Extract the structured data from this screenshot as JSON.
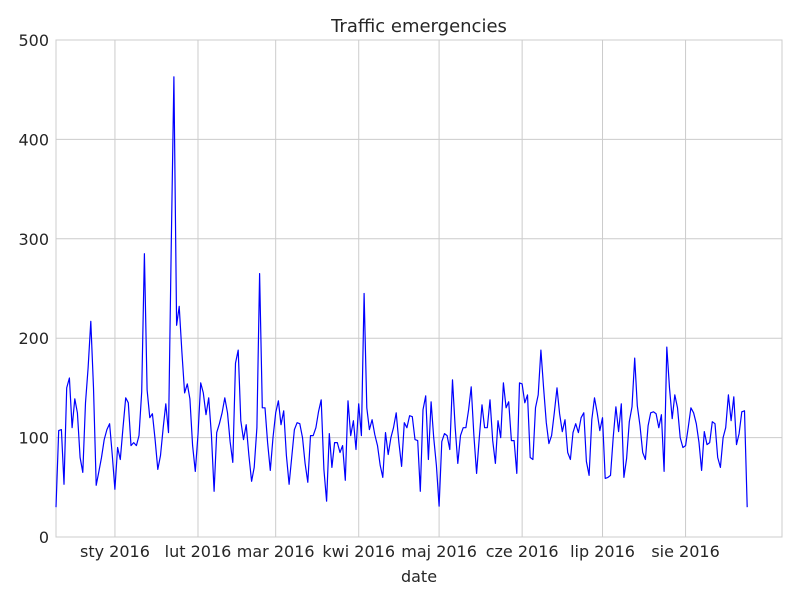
{
  "chart_data": {
    "type": "line",
    "title": "Traffic emergencies",
    "xlabel": "date",
    "ylabel": "",
    "ylim": [
      0,
      500
    ],
    "yticks": [
      0,
      100,
      200,
      300,
      400,
      500
    ],
    "xlim": [
      "2015-12-10",
      "2016-09-06"
    ],
    "xticks": [
      {
        "date": "2016-01-01",
        "label": "sty 2016"
      },
      {
        "date": "2016-02-01",
        "label": "lut 2016"
      },
      {
        "date": "2016-03-01",
        "label": "mar 2016"
      },
      {
        "date": "2016-04-01",
        "label": "kwi 2016"
      },
      {
        "date": "2016-05-01",
        "label": "maj 2016"
      },
      {
        "date": "2016-06-01",
        "label": "cze 2016"
      },
      {
        "date": "2016-07-01",
        "label": "lip 2016"
      },
      {
        "date": "2016-08-01",
        "label": "sie 2016"
      }
    ],
    "grid": true,
    "color": "#0000ff",
    "series": [
      {
        "start_date": "2015-12-10",
        "values": [
          30,
          107,
          108,
          53,
          150,
          160,
          110,
          139,
          125,
          80,
          65,
          135,
          170,
          217,
          150,
          52,
          66,
          80,
          98,
          108,
          114,
          82,
          48,
          90,
          78,
          110,
          140,
          135,
          92,
          95,
          92,
          102,
          146,
          285,
          148,
          120,
          124,
          98,
          68,
          82,
          110,
          134,
          105,
          290,
          463,
          213,
          232,
          186,
          145,
          154,
          139,
          92,
          66,
          103,
          155,
          145,
          123,
          140,
          103,
          46,
          105,
          114,
          125,
          140,
          125,
          96,
          75,
          175,
          188,
          117,
          98,
          113,
          82,
          56,
          70,
          110,
          265,
          130,
          130,
          95,
          67,
          100,
          125,
          137,
          113,
          127,
          82,
          53,
          80,
          108,
          115,
          114,
          100,
          74,
          55,
          102,
          102,
          110,
          126,
          138,
          68,
          36,
          104,
          70,
          95,
          95,
          85,
          92,
          57,
          137,
          102,
          117,
          88,
          134,
          102,
          245,
          130,
          108,
          118,
          103,
          92,
          72,
          60,
          105,
          83,
          100,
          110,
          125,
          95,
          71,
          115,
          110,
          122,
          121,
          98,
          97,
          46,
          128,
          142,
          78,
          136,
          100,
          72,
          31,
          96,
          104,
          102,
          88,
          158,
          110,
          74,
          102,
          110,
          110,
          128,
          151,
          102,
          64,
          100,
          133,
          110,
          110,
          138,
          97,
          74,
          117,
          100,
          155,
          130,
          136,
          97,
          97,
          64,
          155,
          154,
          135,
          143,
          80,
          78,
          130,
          143,
          188,
          150,
          115,
          94,
          102,
          125,
          150,
          124,
          106,
          118,
          85,
          78,
          105,
          114,
          105,
          120,
          125,
          76,
          62,
          118,
          140,
          125,
          107,
          120,
          59,
          60,
          62,
          100,
          131,
          106,
          134,
          60,
          79,
          116,
          131,
          180,
          132,
          112,
          85,
          78,
          112,
          125,
          126,
          124,
          110,
          123,
          66,
          191,
          150,
          119,
          143,
          130,
          100,
          90,
          92,
          110,
          130,
          125,
          114,
          95,
          67,
          106,
          93,
          95,
          116,
          114,
          80,
          70,
          100,
          110,
          143,
          117,
          141,
          93,
          104,
          126,
          127,
          30
        ]
      }
    ]
  }
}
